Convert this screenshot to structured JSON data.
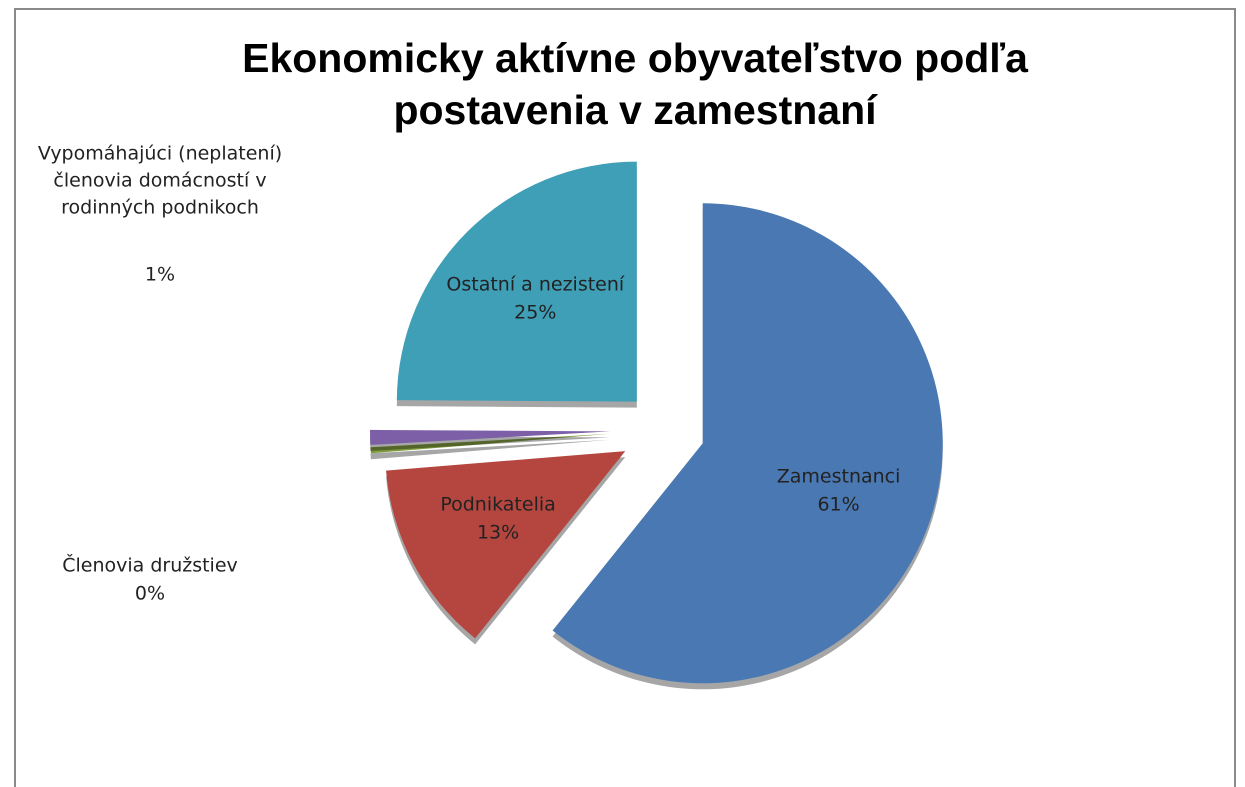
{
  "chart_data": {
    "type": "pie",
    "title": "Ekonomicky aktívne obyvateľstvo podľa postavenia v zamestnaní",
    "categories": [
      "Zamestnanci",
      "Podnikatelia",
      "Členovia družstiev",
      "Vypomáhajúci (neplatení) členovia domácností v rodinných podnikoch",
      "Ostatní a nezistení"
    ],
    "values": [
      61,
      13,
      0.4,
      1,
      25
    ],
    "value_labels": [
      "61%",
      "13%",
      "0%",
      "1%",
      "25%"
    ],
    "colors": [
      "#4a78b2",
      "#b4463f",
      "#809b3f",
      "#7c5fa6",
      "#3f9fb7"
    ]
  }
}
